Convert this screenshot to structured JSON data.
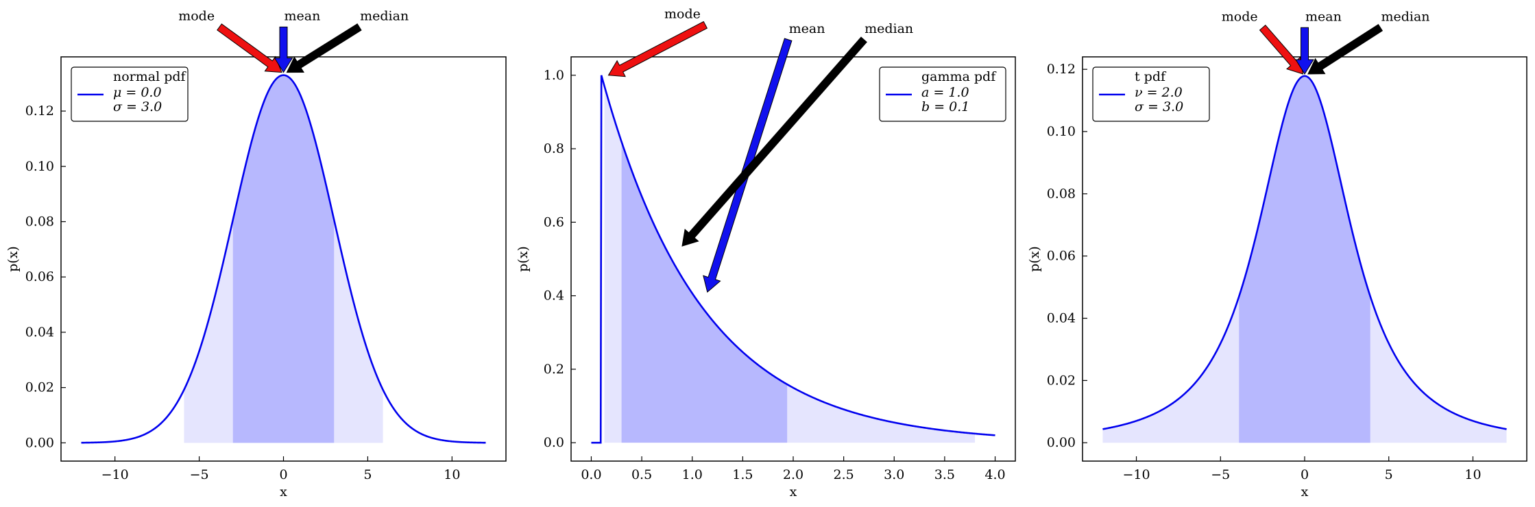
{
  "chart_data": [
    {
      "type": "area",
      "distribution": "normal",
      "xlabel": "x",
      "ylabel": "p(x)",
      "xlim": [
        -13.2,
        13.2
      ],
      "ylim": [
        -0.0066,
        0.1396
      ],
      "xticks": [
        -10,
        -5,
        0,
        5,
        10
      ],
      "yticks": [
        0.0,
        0.02,
        0.04,
        0.06,
        0.08,
        0.1,
        0.12
      ],
      "xtick_labels": [
        "−10",
        "−5",
        "0",
        "5",
        "10"
      ],
      "ytick_labels": [
        "0.00",
        "0.02",
        "0.04",
        "0.06",
        "0.08",
        "0.10",
        "0.12"
      ],
      "curve_range": [
        -12,
        12
      ],
      "params": {
        "mu": 0.0,
        "sigma": 3.0
      },
      "shaded_outer": [
        -5.9,
        5.9
      ],
      "shaded_inner": [
        -3.0,
        3.0
      ],
      "legend": {
        "location": "upper-left",
        "title": "normal pdf",
        "lines": [
          "μ = 0.0",
          "σ = 3.0"
        ]
      },
      "annotations": [
        {
          "label": "mode",
          "color": "#ee1111",
          "from": [
            -3.8,
            0.1504
          ],
          "to": [
            -0.1,
            0.134
          ]
        },
        {
          "label": "mean",
          "color": "#1111ee",
          "from": [
            0.0,
            0.1504
          ],
          "to": [
            0.0,
            0.134
          ]
        },
        {
          "label": "median",
          "color": "#000000",
          "from": [
            4.5,
            0.1504
          ],
          "to": [
            0.2,
            0.134
          ]
        }
      ],
      "annotation_labels": {
        "mode": "mode",
        "mean": "mean",
        "median": "median"
      },
      "colors": {
        "line": "#0000ee",
        "inner_fill": "#b7b8fe",
        "outer_fill": "#e5e5fe"
      }
    },
    {
      "type": "area",
      "distribution": "gamma",
      "xlabel": "x",
      "ylabel": "p(x)",
      "xlim": [
        -0.2,
        4.2
      ],
      "ylim": [
        -0.05,
        1.05
      ],
      "xticks": [
        0.0,
        0.5,
        1.0,
        1.5,
        2.0,
        2.5,
        3.0,
        3.5,
        4.0
      ],
      "yticks": [
        0.0,
        0.2,
        0.4,
        0.6,
        0.8,
        1.0
      ],
      "xtick_labels": [
        "0.0",
        "0.5",
        "1.0",
        "1.5",
        "2.0",
        "2.5",
        "3.0",
        "3.5",
        "4.0"
      ],
      "ytick_labels": [
        "0.0",
        "0.2",
        "0.4",
        "0.6",
        "0.8",
        "1.0"
      ],
      "curve_range": [
        0.0,
        4.0
      ],
      "params": {
        "a": 1.0,
        "b": 0.1
      },
      "shaded_outer": [
        0.13,
        3.8
      ],
      "shaded_inner": [
        0.3,
        1.94
      ],
      "legend": {
        "location": "upper-right",
        "title": "gamma pdf",
        "lines": [
          "a = 1.0",
          "b = 0.1"
        ]
      },
      "annotations": [
        {
          "label": "mode",
          "color": "#ee1111",
          "from": [
            1.13,
            1.137
          ],
          "to": [
            0.17,
            1.0
          ]
        },
        {
          "label": "mean",
          "color": "#1111ee",
          "from": [
            1.95,
            1.097
          ],
          "to": [
            1.15,
            0.41
          ]
        },
        {
          "label": "median",
          "color": "#000000",
          "from": [
            2.7,
            1.097
          ],
          "to": [
            0.9,
            0.535
          ]
        }
      ],
      "annotation_labels": {
        "mode": "mode",
        "mean": "mean",
        "median": "median"
      },
      "colors": {
        "line": "#0000ee",
        "inner_fill": "#b7b8fe",
        "outer_fill": "#e5e5fe"
      }
    },
    {
      "type": "area",
      "distribution": "t",
      "xlabel": "x",
      "ylabel": "p(x)",
      "xlim": [
        -13.2,
        13.2
      ],
      "ylim": [
        -0.0059,
        0.124
      ],
      "xticks": [
        -10,
        -5,
        0,
        5,
        10
      ],
      "yticks": [
        0.0,
        0.02,
        0.04,
        0.06,
        0.08,
        0.1,
        0.12
      ],
      "xtick_labels": [
        "−10",
        "−5",
        "0",
        "5",
        "10"
      ],
      "ytick_labels": [
        "0.00",
        "0.02",
        "0.04",
        "0.06",
        "0.08",
        "0.10",
        "0.12"
      ],
      "curve_range": [
        -12,
        12
      ],
      "params": {
        "nu": 2.0,
        "sigma": 3.0
      },
      "shaded_outer": [
        -12,
        12
      ],
      "shaded_inner": [
        -3.9,
        3.9
      ],
      "legend": {
        "location": "upper-left",
        "title": "t pdf",
        "lines": [
          "ν = 2.0",
          "σ = 3.0"
        ]
      },
      "annotations": [
        {
          "label": "mode",
          "color": "#ee1111",
          "from": [
            -2.5,
            0.1334
          ],
          "to": [
            -0.1,
            0.1185
          ]
        },
        {
          "label": "mean",
          "color": "#1111ee",
          "from": [
            0.0,
            0.1334
          ],
          "to": [
            0.0,
            0.1185
          ]
        },
        {
          "label": "median",
          "color": "#000000",
          "from": [
            4.5,
            0.1334
          ],
          "to": [
            0.2,
            0.1185
          ]
        }
      ],
      "annotation_labels": {
        "mode": "mode",
        "mean": "mean",
        "median": "median"
      },
      "colors": {
        "line": "#0000ee",
        "inner_fill": "#b7b8fe",
        "outer_fill": "#e5e5fe"
      }
    }
  ]
}
